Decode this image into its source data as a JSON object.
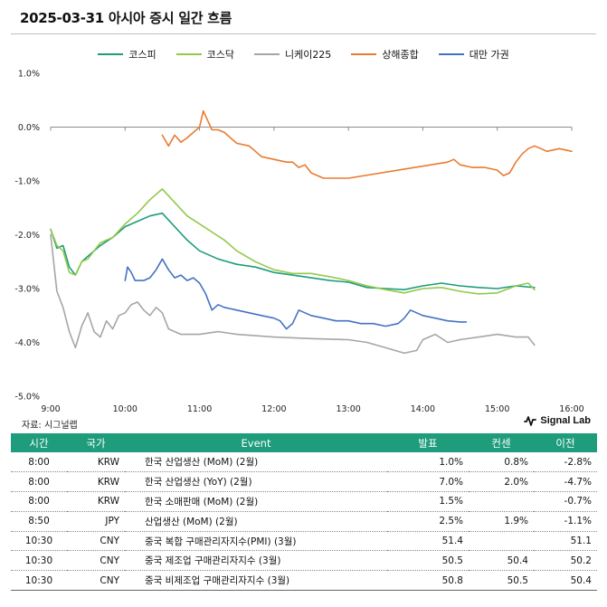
{
  "header": {
    "title": "2025-03-31 아시아 증시 일간 흐름"
  },
  "footer": {
    "source": "자료: 시그널랩",
    "brand": "Signal Lab"
  },
  "colors": {
    "kospi": "#1e9c7c",
    "kosdaq": "#92c94b",
    "nikkei": "#a6a6a6",
    "shanghai": "#ea7a30",
    "taiwan": "#4472c4",
    "table_header": "#1e9c7c"
  },
  "chart_data": {
    "type": "line",
    "title": "",
    "xlabel": "",
    "ylabel": "",
    "x_unit": "time",
    "y_unit": "%",
    "xlim": [
      "9:00",
      "16:00"
    ],
    "ylim": [
      -5.0,
      1.0
    ],
    "x_ticks": [
      "9:00",
      "10:00",
      "11:00",
      "12:00",
      "13:00",
      "14:00",
      "15:00",
      "16:00"
    ],
    "y_ticks": [
      "1.0%",
      "0.0%",
      "-1.0%",
      "-2.0%",
      "-3.0%",
      "-4.0%",
      "-5.0%"
    ],
    "grid": false,
    "legend_position": "top-center",
    "series": [
      {
        "key": "kospi",
        "name": "코스피",
        "points": [
          [
            "9:00",
            -1.9
          ],
          [
            "9:05",
            -2.25
          ],
          [
            "9:10",
            -2.2
          ],
          [
            "9:15",
            -2.6
          ],
          [
            "9:20",
            -2.75
          ],
          [
            "9:25",
            -2.5
          ],
          [
            "9:30",
            -2.4
          ],
          [
            "9:40",
            -2.2
          ],
          [
            "9:50",
            -2.05
          ],
          [
            "10:00",
            -1.85
          ],
          [
            "10:10",
            -1.75
          ],
          [
            "10:20",
            -1.65
          ],
          [
            "10:30",
            -1.6
          ],
          [
            "10:40",
            -1.85
          ],
          [
            "10:50",
            -2.1
          ],
          [
            "11:00",
            -2.3
          ],
          [
            "11:15",
            -2.45
          ],
          [
            "11:30",
            -2.55
          ],
          [
            "11:45",
            -2.6
          ],
          [
            "12:00",
            -2.7
          ],
          [
            "12:15",
            -2.75
          ],
          [
            "12:30",
            -2.8
          ],
          [
            "12:45",
            -2.85
          ],
          [
            "13:00",
            -2.88
          ],
          [
            "13:15",
            -2.98
          ],
          [
            "13:30",
            -3.0
          ],
          [
            "13:45",
            -3.02
          ],
          [
            "14:00",
            -2.95
          ],
          [
            "14:15",
            -2.9
          ],
          [
            "14:30",
            -2.95
          ],
          [
            "14:45",
            -2.98
          ],
          [
            "15:00",
            -3.0
          ],
          [
            "15:15",
            -2.95
          ],
          [
            "15:30",
            -2.98
          ]
        ]
      },
      {
        "key": "kosdaq",
        "name": "코스닥",
        "points": [
          [
            "9:00",
            -1.9
          ],
          [
            "9:05",
            -2.2
          ],
          [
            "9:10",
            -2.3
          ],
          [
            "9:15",
            -2.7
          ],
          [
            "9:20",
            -2.75
          ],
          [
            "9:25",
            -2.5
          ],
          [
            "9:30",
            -2.45
          ],
          [
            "9:40",
            -2.15
          ],
          [
            "9:50",
            -2.05
          ],
          [
            "10:00",
            -1.8
          ],
          [
            "10:10",
            -1.6
          ],
          [
            "10:20",
            -1.35
          ],
          [
            "10:30",
            -1.15
          ],
          [
            "10:40",
            -1.4
          ],
          [
            "10:50",
            -1.65
          ],
          [
            "11:00",
            -1.8
          ],
          [
            "11:10",
            -1.95
          ],
          [
            "11:20",
            -2.1
          ],
          [
            "11:30",
            -2.3
          ],
          [
            "11:45",
            -2.5
          ],
          [
            "12:00",
            -2.65
          ],
          [
            "12:15",
            -2.72
          ],
          [
            "12:30",
            -2.72
          ],
          [
            "12:45",
            -2.78
          ],
          [
            "13:00",
            -2.85
          ],
          [
            "13:15",
            -2.95
          ],
          [
            "13:30",
            -3.02
          ],
          [
            "13:45",
            -3.08
          ],
          [
            "14:00",
            -3.0
          ],
          [
            "14:15",
            -2.98
          ],
          [
            "14:30",
            -3.05
          ],
          [
            "14:45",
            -3.1
          ],
          [
            "15:00",
            -3.08
          ],
          [
            "15:15",
            -2.95
          ],
          [
            "15:25",
            -2.9
          ],
          [
            "15:30",
            -3.02
          ]
        ]
      },
      {
        "key": "nikkei",
        "name": "니케이225",
        "points": [
          [
            "9:00",
            -2.0
          ],
          [
            "9:05",
            -3.05
          ],
          [
            "9:10",
            -3.35
          ],
          [
            "9:15",
            -3.8
          ],
          [
            "9:20",
            -4.1
          ],
          [
            "9:25",
            -3.7
          ],
          [
            "9:30",
            -3.45
          ],
          [
            "9:35",
            -3.8
          ],
          [
            "9:40",
            -3.9
          ],
          [
            "9:45",
            -3.6
          ],
          [
            "9:50",
            -3.75
          ],
          [
            "9:55",
            -3.5
          ],
          [
            "10:00",
            -3.45
          ],
          [
            "10:05",
            -3.3
          ],
          [
            "10:10",
            -3.25
          ],
          [
            "10:15",
            -3.4
          ],
          [
            "10:20",
            -3.5
          ],
          [
            "10:25",
            -3.35
          ],
          [
            "10:30",
            -3.45
          ],
          [
            "10:35",
            -3.75
          ],
          [
            "10:45",
            -3.85
          ],
          [
            "11:00",
            -3.85
          ],
          [
            "11:15",
            -3.8
          ],
          [
            "11:30",
            -3.85
          ],
          [
            "12:00",
            -3.9
          ],
          [
            "12:30",
            -3.93
          ],
          [
            "13:00",
            -3.95
          ],
          [
            "13:15",
            -4.0
          ],
          [
            "13:30",
            -4.1
          ],
          [
            "13:45",
            -4.2
          ],
          [
            "13:55",
            -4.15
          ],
          [
            "14:00",
            -3.95
          ],
          [
            "14:10",
            -3.85
          ],
          [
            "14:20",
            -4.0
          ],
          [
            "14:30",
            -3.95
          ],
          [
            "14:45",
            -3.9
          ],
          [
            "15:00",
            -3.85
          ],
          [
            "15:15",
            -3.9
          ],
          [
            "15:25",
            -3.9
          ],
          [
            "15:30",
            -4.05
          ]
        ]
      },
      {
        "key": "shanghai",
        "name": "상해종합",
        "points": [
          [
            "10:30",
            -0.15
          ],
          [
            "10:35",
            -0.35
          ],
          [
            "10:40",
            -0.15
          ],
          [
            "10:45",
            -0.28
          ],
          [
            "10:50",
            -0.2
          ],
          [
            "10:55",
            -0.1
          ],
          [
            "11:00",
            0.0
          ],
          [
            "11:03",
            0.3
          ],
          [
            "11:06",
            0.15
          ],
          [
            "11:10",
            -0.05
          ],
          [
            "11:15",
            -0.05
          ],
          [
            "11:20",
            -0.1
          ],
          [
            "11:30",
            -0.3
          ],
          [
            "11:40",
            -0.35
          ],
          [
            "11:50",
            -0.55
          ],
          [
            "12:00",
            -0.6
          ],
          [
            "12:10",
            -0.65
          ],
          [
            "12:15",
            -0.65
          ],
          [
            "12:20",
            -0.75
          ],
          [
            "12:25",
            -0.7
          ],
          [
            "12:30",
            -0.85
          ],
          [
            "12:35",
            -0.9
          ],
          [
            "12:40",
            -0.95
          ],
          [
            "13:00",
            -0.95
          ],
          [
            "14:20",
            -0.65
          ],
          [
            "14:25",
            -0.6
          ],
          [
            "14:30",
            -0.7
          ],
          [
            "14:40",
            -0.75
          ],
          [
            "14:50",
            -0.75
          ],
          [
            "15:00",
            -0.8
          ],
          [
            "15:05",
            -0.9
          ],
          [
            "15:10",
            -0.85
          ],
          [
            "15:15",
            -0.65
          ],
          [
            "15:20",
            -0.5
          ],
          [
            "15:25",
            -0.4
          ],
          [
            "15:30",
            -0.35
          ],
          [
            "15:40",
            -0.45
          ],
          [
            "15:50",
            -0.4
          ],
          [
            "16:00",
            -0.45
          ]
        ]
      },
      {
        "key": "taiwan",
        "name": "대만 가권",
        "points": [
          [
            "10:00",
            -2.85
          ],
          [
            "10:02",
            -2.6
          ],
          [
            "10:05",
            -2.7
          ],
          [
            "10:08",
            -2.85
          ],
          [
            "10:15",
            -2.85
          ],
          [
            "10:20",
            -2.8
          ],
          [
            "10:25",
            -2.65
          ],
          [
            "10:30",
            -2.45
          ],
          [
            "10:35",
            -2.65
          ],
          [
            "10:40",
            -2.8
          ],
          [
            "10:45",
            -2.75
          ],
          [
            "10:50",
            -2.85
          ],
          [
            "10:55",
            -2.8
          ],
          [
            "11:00",
            -2.9
          ],
          [
            "11:05",
            -3.1
          ],
          [
            "11:10",
            -3.4
          ],
          [
            "11:15",
            -3.3
          ],
          [
            "11:20",
            -3.35
          ],
          [
            "11:30",
            -3.4
          ],
          [
            "11:40",
            -3.45
          ],
          [
            "11:50",
            -3.5
          ],
          [
            "12:00",
            -3.55
          ],
          [
            "12:05",
            -3.6
          ],
          [
            "12:10",
            -3.75
          ],
          [
            "12:15",
            -3.65
          ],
          [
            "12:20",
            -3.4
          ],
          [
            "12:25",
            -3.45
          ],
          [
            "12:30",
            -3.5
          ],
          [
            "12:40",
            -3.55
          ],
          [
            "12:50",
            -3.6
          ],
          [
            "13:00",
            -3.6
          ],
          [
            "13:10",
            -3.65
          ],
          [
            "13:20",
            -3.65
          ],
          [
            "13:30",
            -3.7
          ],
          [
            "13:40",
            -3.65
          ],
          [
            "13:45",
            -3.55
          ],
          [
            "13:50",
            -3.4
          ],
          [
            "14:00",
            -3.5
          ],
          [
            "14:10",
            -3.55
          ],
          [
            "14:20",
            -3.6
          ],
          [
            "14:30",
            -3.62
          ],
          [
            "14:35",
            -3.62
          ]
        ]
      }
    ]
  },
  "table": {
    "columns": [
      "시간",
      "국가",
      "Event",
      "발표",
      "컨센",
      "이전"
    ],
    "rows": [
      [
        "8:00",
        "KRW",
        "한국 산업생산 (MoM) (2월)",
        "1.0%",
        "0.8%",
        "-2.8%"
      ],
      [
        "8:00",
        "KRW",
        "한국 산업생산 (YoY) (2월)",
        "7.0%",
        "2.0%",
        "-4.7%"
      ],
      [
        "8:00",
        "KRW",
        "한국 소매판매 (MoM) (2월)",
        "1.5%",
        "",
        "-0.7%"
      ],
      [
        "8:50",
        "JPY",
        "산업생산 (MoM) (2월)",
        "2.5%",
        "1.9%",
        "-1.1%"
      ],
      [
        "10:30",
        "CNY",
        "중국 복합 구매관리자지수(PMI) (3월)",
        "51.4",
        "",
        "51.1"
      ],
      [
        "10:30",
        "CNY",
        "중국 제조업 구매관리자지수 (3월)",
        "50.5",
        "50.4",
        "50.2"
      ],
      [
        "10:30",
        "CNY",
        "중국 비제조업 구매관리자지수 (3월)",
        "50.8",
        "50.5",
        "50.4"
      ]
    ]
  }
}
